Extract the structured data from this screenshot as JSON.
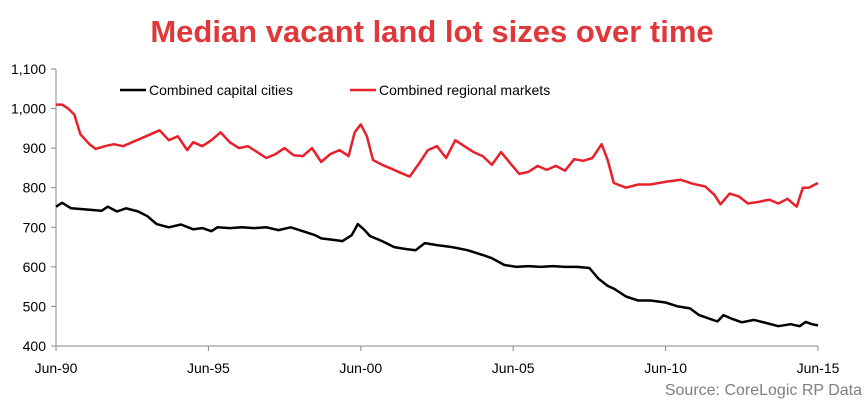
{
  "chart_data": {
    "type": "line",
    "title": "Median vacant land lot sizes over time",
    "source": "Source: CoreLogic RP Data",
    "x_ticks": [
      "Jun-90",
      "Jun-95",
      "Jun-00",
      "Jun-05",
      "Jun-10",
      "Jun-15"
    ],
    "x_range": [
      1990.5,
      2015.5
    ],
    "y_ticks": [
      "400",
      "500",
      "600",
      "700",
      "800",
      "900",
      "1,000",
      "1,100"
    ],
    "ylim": [
      400,
      1100
    ],
    "grid": false,
    "legend_position": "top",
    "series": [
      {
        "name": "Combined capital cities",
        "color": "#000000",
        "points": [
          [
            1990.5,
            752
          ],
          [
            1990.7,
            762
          ],
          [
            1991.0,
            748
          ],
          [
            1991.5,
            745
          ],
          [
            1992.0,
            742
          ],
          [
            1992.2,
            752
          ],
          [
            1992.5,
            740
          ],
          [
            1992.8,
            748
          ],
          [
            1993.2,
            740
          ],
          [
            1993.5,
            728
          ],
          [
            1993.8,
            708
          ],
          [
            1994.2,
            700
          ],
          [
            1994.6,
            707
          ],
          [
            1995.0,
            695
          ],
          [
            1995.3,
            698
          ],
          [
            1995.6,
            690
          ],
          [
            1995.8,
            700
          ],
          [
            1996.2,
            698
          ],
          [
            1996.6,
            700
          ],
          [
            1997.0,
            698
          ],
          [
            1997.4,
            700
          ],
          [
            1997.8,
            693
          ],
          [
            1998.2,
            700
          ],
          [
            1998.6,
            690
          ],
          [
            1999.0,
            680
          ],
          [
            1999.2,
            672
          ],
          [
            1999.6,
            668
          ],
          [
            1999.9,
            665
          ],
          [
            2000.2,
            680
          ],
          [
            2000.4,
            708
          ],
          [
            2000.6,
            695
          ],
          [
            2000.8,
            678
          ],
          [
            2001.2,
            665
          ],
          [
            2001.6,
            650
          ],
          [
            2002.0,
            645
          ],
          [
            2002.3,
            642
          ],
          [
            2002.6,
            660
          ],
          [
            2003.0,
            655
          ],
          [
            2003.5,
            650
          ],
          [
            2004.0,
            642
          ],
          [
            2004.5,
            630
          ],
          [
            2004.8,
            622
          ],
          [
            2005.2,
            605
          ],
          [
            2005.6,
            600
          ],
          [
            2006.0,
            602
          ],
          [
            2006.4,
            600
          ],
          [
            2006.8,
            602
          ],
          [
            2007.2,
            600
          ],
          [
            2007.6,
            600
          ],
          [
            2008.0,
            597
          ],
          [
            2008.3,
            570
          ],
          [
            2008.6,
            552
          ],
          [
            2008.8,
            545
          ],
          [
            2009.2,
            525
          ],
          [
            2009.6,
            515
          ],
          [
            2010.0,
            515
          ],
          [
            2010.5,
            510
          ],
          [
            2010.9,
            500
          ],
          [
            2011.3,
            495
          ],
          [
            2011.6,
            478
          ],
          [
            2011.9,
            470
          ],
          [
            2012.2,
            462
          ],
          [
            2012.4,
            478
          ],
          [
            2012.7,
            468
          ],
          [
            2013.0,
            460
          ],
          [
            2013.4,
            466
          ],
          [
            2013.8,
            458
          ],
          [
            2014.2,
            450
          ],
          [
            2014.6,
            455
          ],
          [
            2014.9,
            450
          ],
          [
            2015.1,
            461
          ],
          [
            2015.3,
            455
          ],
          [
            2015.5,
            452
          ]
        ]
      },
      {
        "name": "Combined regional markets",
        "color": "#e8202a",
        "points": [
          [
            1990.5,
            1010
          ],
          [
            1990.7,
            1010
          ],
          [
            1990.9,
            1000
          ],
          [
            1991.1,
            985
          ],
          [
            1991.3,
            935
          ],
          [
            1991.6,
            910
          ],
          [
            1991.8,
            898
          ],
          [
            1992.1,
            905
          ],
          [
            1992.4,
            910
          ],
          [
            1992.7,
            905
          ],
          [
            1993.0,
            915
          ],
          [
            1993.3,
            925
          ],
          [
            1993.6,
            935
          ],
          [
            1993.9,
            945
          ],
          [
            1994.2,
            920
          ],
          [
            1994.5,
            930
          ],
          [
            1994.8,
            895
          ],
          [
            1995.0,
            915
          ],
          [
            1995.3,
            905
          ],
          [
            1995.6,
            920
          ],
          [
            1995.9,
            940
          ],
          [
            1996.2,
            915
          ],
          [
            1996.5,
            900
          ],
          [
            1996.8,
            905
          ],
          [
            1997.1,
            890
          ],
          [
            1997.4,
            875
          ],
          [
            1997.7,
            885
          ],
          [
            1998.0,
            900
          ],
          [
            1998.3,
            882
          ],
          [
            1998.6,
            880
          ],
          [
            1998.9,
            900
          ],
          [
            1999.2,
            865
          ],
          [
            1999.5,
            885
          ],
          [
            1999.8,
            895
          ],
          [
            2000.1,
            880
          ],
          [
            2000.3,
            940
          ],
          [
            2000.5,
            960
          ],
          [
            2000.7,
            930
          ],
          [
            2000.9,
            870
          ],
          [
            2001.2,
            858
          ],
          [
            2001.5,
            848
          ],
          [
            2001.8,
            838
          ],
          [
            2002.1,
            828
          ],
          [
            2002.4,
            860
          ],
          [
            2002.7,
            895
          ],
          [
            2003.0,
            905
          ],
          [
            2003.3,
            875
          ],
          [
            2003.6,
            920
          ],
          [
            2003.9,
            905
          ],
          [
            2004.2,
            890
          ],
          [
            2004.5,
            880
          ],
          [
            2004.8,
            858
          ],
          [
            2005.1,
            890
          ],
          [
            2005.4,
            862
          ],
          [
            2005.7,
            835
          ],
          [
            2006.0,
            840
          ],
          [
            2006.3,
            855
          ],
          [
            2006.6,
            845
          ],
          [
            2006.9,
            855
          ],
          [
            2007.2,
            843
          ],
          [
            2007.5,
            872
          ],
          [
            2007.8,
            868
          ],
          [
            2008.1,
            875
          ],
          [
            2008.4,
            910
          ],
          [
            2008.6,
            870
          ],
          [
            2008.8,
            812
          ],
          [
            2009.2,
            800
          ],
          [
            2009.6,
            808
          ],
          [
            2010.0,
            808
          ],
          [
            2010.5,
            815
          ],
          [
            2011.0,
            820
          ],
          [
            2011.4,
            810
          ],
          [
            2011.8,
            803
          ],
          [
            2012.1,
            782
          ],
          [
            2012.3,
            758
          ],
          [
            2012.6,
            785
          ],
          [
            2012.9,
            778
          ],
          [
            2013.2,
            760
          ],
          [
            2013.6,
            765
          ],
          [
            2013.9,
            770
          ],
          [
            2014.2,
            760
          ],
          [
            2014.5,
            772
          ],
          [
            2014.8,
            752
          ],
          [
            2015.0,
            800
          ],
          [
            2015.2,
            800
          ],
          [
            2015.4,
            808
          ],
          [
            2015.5,
            812
          ]
        ]
      }
    ]
  }
}
